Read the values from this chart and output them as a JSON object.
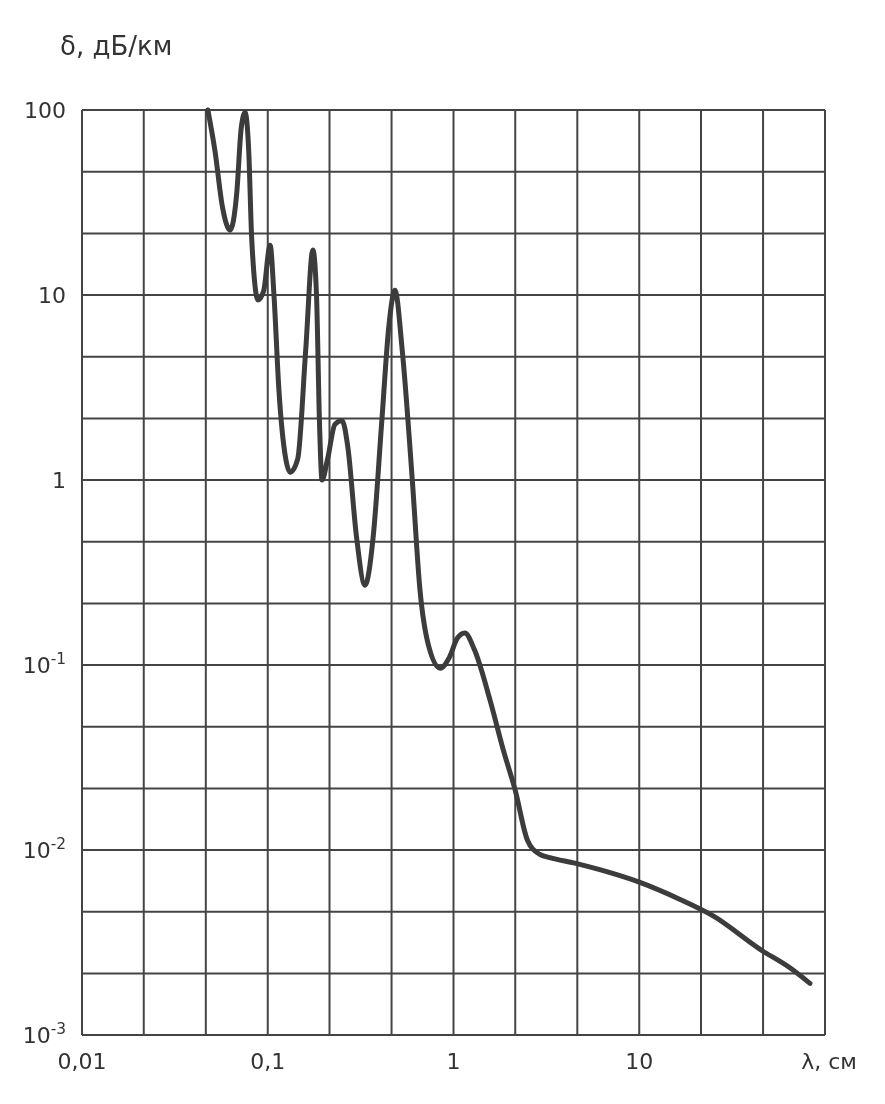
{
  "chart_data": {
    "type": "line",
    "xlabel": "λ, см",
    "ylabel": "δ, дБ/км",
    "log": "xy",
    "grid": true,
    "marker": "none",
    "line_style": "solid",
    "xlim": [
      0.01,
      100
    ],
    "ylim": [
      0.001,
      100
    ],
    "xticks": [
      {
        "value": 0.01,
        "label": "0,01"
      },
      {
        "value": 0.0215,
        "label": null
      },
      {
        "value": 0.0464,
        "label": null
      },
      {
        "value": 0.1,
        "label": "0,1"
      },
      {
        "value": 0.215,
        "label": null
      },
      {
        "value": 0.464,
        "label": null
      },
      1,
      {
        "value": 2.15,
        "label": null
      },
      {
        "value": 4.64,
        "label": null
      },
      10,
      {
        "value": 21.5,
        "label": null
      },
      {
        "value": 46.4,
        "label": null
      },
      {
        "value": 100,
        "label": null
      }
    ],
    "yticks": [
      {
        "value": 0.001,
        "label": "10$^{-3}$"
      },
      {
        "value": 0.00215,
        "label": null
      },
      {
        "value": 0.00464,
        "label": null
      },
      {
        "value": 0.01,
        "label": "10$^{-2}$"
      },
      {
        "value": 0.0215,
        "label": null
      },
      {
        "value": 0.0464,
        "label": null
      },
      {
        "value": 0.1,
        "label": "10$^{-1}$"
      },
      {
        "value": 0.215,
        "label": null
      },
      {
        "value": 0.464,
        "label": null
      },
      1,
      {
        "value": 2.15,
        "label": null
      },
      {
        "value": 4.64,
        "label": null
      },
      10,
      {
        "value": 21.5,
        "label": null
      },
      {
        "value": 46.4,
        "label": null
      },
      100
    ],
    "series": [
      {
        "color": "#3c3c3c",
        "x": [
          0.0476,
          0.052,
          0.057,
          0.0627,
          0.068,
          0.072,
          0.0755,
          0.079,
          0.082,
          0.0887,
          0.095,
          0.103,
          0.108,
          0.115,
          0.125,
          0.132,
          0.145,
          0.16,
          0.175,
          0.183,
          0.19,
          0.196,
          0.21,
          0.23,
          0.251,
          0.27,
          0.3,
          0.334,
          0.37,
          0.41,
          0.45,
          0.484,
          0.53,
          0.6,
          0.66,
          0.73,
          0.85,
          0.95,
          1.05,
          1.15,
          1.3,
          1.57,
          1.85,
          2.15,
          2.5,
          2.9,
          3.3,
          4.5,
          6.2,
          10,
          16.6,
          25,
          44.8,
          65,
          83
        ],
        "values": [
          100,
          60,
          30,
          22.4,
          35,
          80,
          97,
          60,
          20,
          9.4,
          10.5,
          18.6,
          10,
          3,
          1.3,
          1.1,
          1.3,
          5,
          17.5,
          10,
          2,
          1,
          1.3,
          2,
          2.1,
          1.5,
          0.5,
          0.27,
          0.5,
          2,
          7,
          10.6,
          5,
          1,
          0.254,
          0.13,
          0.096,
          0.11,
          0.14,
          0.149,
          0.12,
          0.065,
          0.035,
          0.021,
          0.0113,
          0.0095,
          0.0091,
          0.0085,
          0.0078,
          0.0067,
          0.0054,
          0.0044,
          0.0029,
          0.0023,
          0.0019
        ]
      }
    ]
  }
}
